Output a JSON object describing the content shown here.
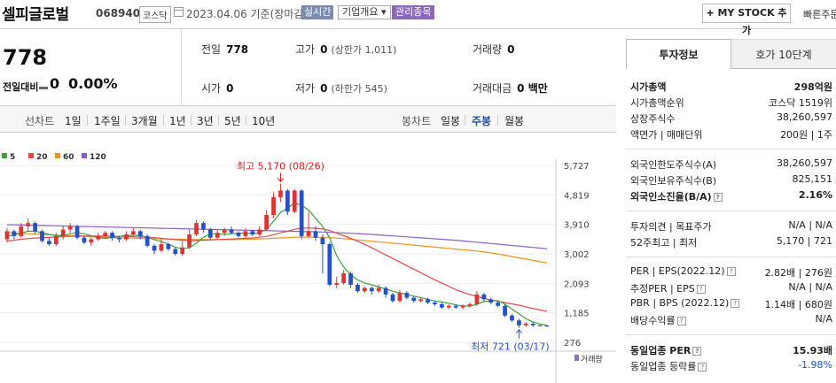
{
  "header": {
    "stock_name": "셀피글로벌",
    "stock_code": "068940",
    "market": "코스닥",
    "date": "2023.04.06 기준(장마감)",
    "realtime": "실시간",
    "company_overview": "기업개요 ▾",
    "managed": "관리종목",
    "my_stock": "MY STOCK 추가",
    "quick_order": "빠른주문"
  },
  "price": {
    "current": "778",
    "change_label": "전일대비",
    "change_value": "0",
    "change_rate": "0.00%"
  },
  "quote": {
    "prev_close_label": "전일",
    "prev_close": "778",
    "high_label": "고가",
    "high": "0",
    "upper_limit": "(상한가 1,011)",
    "volume_label": "거래량",
    "volume": "0",
    "open_label": "시가",
    "open": "0",
    "low_label": "저가",
    "low": "0",
    "lower_limit": "(하한가 545)",
    "amount_label": "거래대금",
    "amount": "0 백만"
  },
  "period": {
    "line_label": "선차트",
    "line_tabs": [
      "1일",
      "1주일",
      "3개월",
      "1년",
      "3년",
      "5년",
      "10년"
    ],
    "candle_label": "봉차트",
    "candle_tabs": [
      "일봉",
      "주봉",
      "월봉"
    ],
    "active_candle": "주봉"
  },
  "chart_data": {
    "type": "candlestick",
    "legend": [
      {
        "name": "5",
        "color": "#3ca13c"
      },
      {
        "name": "20",
        "color": "#e24a4a"
      },
      {
        "name": "60",
        "color": "#f0921f"
      },
      {
        "name": "120",
        "color": "#8b5fc9"
      }
    ],
    "y_ticks": [
      "5,727",
      "4,819",
      "3,910",
      "3,002",
      "2,093",
      "1,185",
      "276"
    ],
    "ylim": [
      276,
      5727
    ],
    "high_annotation": "최고 5,170 (08/26)",
    "low_annotation": "최저 721 (03/17)",
    "volume_label": "거래량",
    "candles": [
      [
        3450,
        3700,
        3350,
        3800
      ],
      [
        3700,
        3550,
        3450,
        3750
      ],
      [
        3550,
        3850,
        3500,
        3950
      ],
      [
        3850,
        3950,
        3700,
        4100
      ],
      [
        3950,
        3700,
        3600,
        4000
      ],
      [
        3700,
        3400,
        3350,
        3750
      ],
      [
        3400,
        3300,
        3250,
        3500
      ],
      [
        3300,
        3550,
        3250,
        3650
      ],
      [
        3550,
        3750,
        3450,
        3850
      ],
      [
        3750,
        3850,
        3650,
        3950
      ],
      [
        3850,
        3500,
        3450,
        3900
      ],
      [
        3500,
        3350,
        3300,
        3550
      ],
      [
        3350,
        3450,
        3250,
        3500
      ],
      [
        3450,
        3550,
        3400,
        3650
      ],
      [
        3550,
        3650,
        3500,
        3700
      ],
      [
        3650,
        3500,
        3400,
        3700
      ],
      [
        3500,
        3450,
        3350,
        3550
      ],
      [
        3450,
        3600,
        3400,
        3700
      ],
      [
        3600,
        3700,
        3550,
        3800
      ],
      [
        3700,
        3550,
        3450,
        3750
      ],
      [
        3550,
        3250,
        3200,
        3600
      ],
      [
        3250,
        3100,
        3000,
        3300
      ],
      [
        3100,
        3300,
        3050,
        3450
      ],
      [
        3300,
        3150,
        3100,
        3350
      ],
      [
        3150,
        3000,
        2950,
        3200
      ],
      [
        3000,
        3200,
        2950,
        3400
      ],
      [
        3200,
        3600,
        3150,
        3750
      ],
      [
        3600,
        3950,
        3550,
        4050
      ],
      [
        3950,
        3750,
        3650,
        4000
      ],
      [
        3750,
        3500,
        3450,
        3800
      ],
      [
        3500,
        3650,
        3450,
        3750
      ],
      [
        3650,
        3750,
        3550,
        3800
      ],
      [
        3750,
        3650,
        3600,
        3850
      ],
      [
        3650,
        3550,
        3500,
        3700
      ],
      [
        3550,
        3700,
        3500,
        3800
      ],
      [
        3700,
        3600,
        3550,
        3750
      ],
      [
        3600,
        3750,
        3550,
        3850
      ],
      [
        3750,
        4200,
        3700,
        4350
      ],
      [
        4200,
        4750,
        4100,
        4900
      ],
      [
        4750,
        4950,
        4600,
        5170
      ],
      [
        4950,
        4300,
        4200,
        5000
      ],
      [
        4300,
        4950,
        4250,
        5000
      ],
      [
        4950,
        3550,
        3450,
        5000
      ],
      [
        3550,
        3700,
        3500,
        4300
      ],
      [
        3700,
        3500,
        3400,
        3850
      ],
      [
        3500,
        3300,
        2400,
        3600
      ],
      [
        3300,
        2050,
        2000,
        3350
      ],
      [
        2050,
        2100,
        1950,
        2300
      ],
      [
        2100,
        2400,
        2050,
        2500
      ],
      [
        2400,
        2050,
        1950,
        2450
      ],
      [
        2050,
        1850,
        1800,
        2100
      ],
      [
        1850,
        1950,
        1800,
        2000
      ],
      [
        1950,
        1850,
        1750,
        2000
      ],
      [
        1850,
        1950,
        1800,
        2050
      ],
      [
        1950,
        1750,
        1650,
        2000
      ],
      [
        1750,
        1550,
        1500,
        1800
      ],
      [
        1550,
        1800,
        1500,
        1900
      ],
      [
        1800,
        1650,
        1600,
        1850
      ],
      [
        1650,
        1550,
        1500,
        1700
      ],
      [
        1550,
        1600,
        1500,
        1650
      ],
      [
        1600,
        1500,
        1450,
        1650
      ],
      [
        1500,
        1450,
        1400,
        1550
      ],
      [
        1450,
        1350,
        1300,
        1500
      ],
      [
        1350,
        1400,
        1300,
        1450
      ],
      [
        1400,
        1350,
        1300,
        1450
      ],
      [
        1350,
        1400,
        1300,
        1450
      ],
      [
        1400,
        1450,
        1350,
        1500
      ],
      [
        1450,
        1750,
        1400,
        1850
      ],
      [
        1750,
        1600,
        1550,
        1800
      ],
      [
        1600,
        1500,
        1450,
        1650
      ],
      [
        1500,
        1400,
        1350,
        1550
      ],
      [
        1400,
        1100,
        1050,
        1450
      ],
      [
        1100,
        950,
        900,
        1150
      ],
      [
        950,
        800,
        721,
        1000
      ],
      [
        800,
        850,
        750,
        900
      ],
      [
        850,
        800,
        750,
        880
      ],
      [
        800,
        790,
        770,
        820
      ],
      [
        790,
        778,
        760,
        800
      ]
    ],
    "volumes": [
      0,
      0,
      0,
      0,
      0,
      0,
      0,
      0,
      0,
      0,
      0,
      0,
      0,
      0,
      0,
      0,
      0,
      0,
      0,
      0,
      0,
      0,
      0,
      0,
      0,
      0,
      0,
      0,
      0,
      0,
      0,
      0,
      0,
      0,
      0,
      0,
      0,
      0,
      0,
      0,
      0,
      0,
      0,
      0,
      0,
      0,
      0,
      0,
      0,
      0,
      0,
      0,
      0,
      0,
      0,
      0,
      0,
      0,
      0,
      0,
      0,
      0,
      0,
      0,
      0,
      0,
      0,
      0,
      0,
      0,
      0,
      0,
      0,
      0,
      0,
      0,
      0,
      0
    ],
    "ma5": [
      3550,
      3580,
      3640,
      3700,
      3700,
      3650,
      3600,
      3560,
      3560,
      3620,
      3650,
      3620,
      3560,
      3500,
      3480,
      3500,
      3540,
      3560,
      3580,
      3560,
      3520,
      3440,
      3380,
      3300,
      3210,
      3160,
      3190,
      3330,
      3510,
      3620,
      3620,
      3600,
      3620,
      3640,
      3640,
      3620,
      3650,
      3760,
      4000,
      4280,
      4420,
      4560,
      4500,
      4350,
      4100,
      3850,
      3500,
      2950,
      2600,
      2350,
      2200,
      2100,
      2050,
      1980,
      1920,
      1850,
      1800,
      1750,
      1700,
      1650,
      1600,
      1550,
      1520,
      1480,
      1430,
      1400,
      1390,
      1450,
      1530,
      1560,
      1560,
      1450,
      1300,
      1150,
      1000,
      900,
      840,
      800
    ],
    "ma20": [
      3400,
      3420,
      3450,
      3470,
      3490,
      3500,
      3510,
      3520,
      3530,
      3540,
      3550,
      3550,
      3550,
      3550,
      3550,
      3545,
      3540,
      3535,
      3530,
      3525,
      3515,
      3500,
      3480,
      3460,
      3440,
      3420,
      3410,
      3410,
      3420,
      3430,
      3440,
      3450,
      3460,
      3470,
      3480,
      3490,
      3510,
      3540,
      3590,
      3650,
      3700,
      3760,
      3790,
      3800,
      3790,
      3770,
      3720,
      3640,
      3560,
      3480,
      3390,
      3290,
      3190,
      3080,
      2970,
      2860,
      2750,
      2640,
      2530,
      2420,
      2310,
      2200,
      2100,
      2000,
      1900,
      1820,
      1750,
      1690,
      1630,
      1580,
      1540,
      1500,
      1460,
      1420,
      1370,
      1320,
      1270,
      1230
    ],
    "ma60": [
      3650,
      3640,
      3630,
      3620,
      3610,
      3600,
      3590,
      3580,
      3570,
      3560,
      3550,
      3540,
      3530,
      3520,
      3510,
      3500,
      3495,
      3490,
      3485,
      3480,
      3475,
      3470,
      3465,
      3460,
      3455,
      3450,
      3445,
      3440,
      3440,
      3440,
      3440,
      3440,
      3440,
      3445,
      3450,
      3455,
      3460,
      3470,
      3480,
      3490,
      3500,
      3510,
      3520,
      3520,
      3515,
      3510,
      3500,
      3490,
      3470,
      3450,
      3430,
      3410,
      3390,
      3370,
      3350,
      3330,
      3310,
      3290,
      3270,
      3250,
      3230,
      3210,
      3190,
      3170,
      3150,
      3130,
      3110,
      3090,
      3060,
      3030,
      3000,
      2960,
      2920,
      2880,
      2840,
      2800,
      2760,
      2720
    ],
    "ma120": [
      3900,
      3895,
      3890,
      3885,
      3880,
      3875,
      3870,
      3865,
      3860,
      3855,
      3850,
      3845,
      3840,
      3835,
      3830,
      3825,
      3820,
      3815,
      3810,
      3805,
      3800,
      3795,
      3790,
      3785,
      3780,
      3775,
      3770,
      3765,
      3760,
      3755,
      3750,
      3745,
      3740,
      3735,
      3730,
      3725,
      3720,
      3715,
      3710,
      3705,
      3700,
      3695,
      3690,
      3685,
      3680,
      3675,
      3665,
      3655,
      3645,
      3635,
      3625,
      3615,
      3600,
      3585,
      3570,
      3555,
      3540,
      3525,
      3510,
      3495,
      3480,
      3465,
      3450,
      3435,
      3420,
      3400,
      3380,
      3360,
      3340,
      3320,
      3300,
      3280,
      3260,
      3240,
      3220,
      3200,
      3180,
      3160
    ]
  },
  "right_panel": {
    "tab_invest": "투자정보",
    "tab_quote": "호가 10단계",
    "rows": [
      {
        "label": "시가총액",
        "value": "298억원",
        "bold": true
      },
      {
        "label": "시가총액순위",
        "value": "코스닥 1519위"
      },
      {
        "label": "상장주식수",
        "value": "38,260,597"
      },
      {
        "label": "액면가 | 매매단위",
        "value": "200원 | 1주"
      },
      {
        "label": "외국인한도주식수(A)",
        "value": "38,260,597"
      },
      {
        "label": "외국인보유주식수(B)",
        "value": "825,151"
      },
      {
        "label": "외국인소진율(B/A)",
        "value": "2.16%",
        "bold": true,
        "icon": "?"
      },
      {
        "label": "투자의견 | 목표주가",
        "value": "N/A | N/A"
      },
      {
        "label": "52주최고 | 최저",
        "value": "5,170 | 721"
      },
      {
        "label": "PER | EPS(2022.12)",
        "value": "2.82배 | 276원",
        "icon": "?"
      },
      {
        "label": "추정PER | EPS",
        "value": "N/A | N/A",
        "icon": "?"
      },
      {
        "label": "PBR | BPS (2022.12)",
        "value": "1.14배 | 680원",
        "icon": "?"
      },
      {
        "label": "배당수익률",
        "value": "N/A",
        "icon": "?"
      },
      {
        "label": "동일업종 PER",
        "value": "15.93배",
        "bold": true,
        "icon": "?"
      },
      {
        "label": "동일업종 등락률",
        "value": "-1.98%",
        "icon": "?",
        "down": true
      }
    ]
  }
}
